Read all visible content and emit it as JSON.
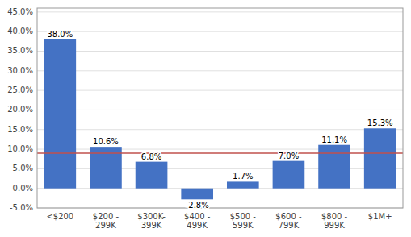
{
  "chart_data": {
    "type": "bar",
    "categories": [
      "<$200",
      "$200 -\n299K",
      "$300K-\n399K",
      "$400 -\n499K",
      "$500 -\n599K",
      "$600 -\n799K",
      "$800 -\n999K",
      "$1M+"
    ],
    "values": [
      38.0,
      10.6,
      6.8,
      -2.8,
      1.7,
      7.0,
      11.1,
      15.3
    ],
    "value_labels": [
      "38.0%",
      "10.6%",
      "6.8%",
      "-2.8%",
      "1.7%",
      "7.0%",
      "11.1%",
      "15.3%"
    ],
    "data_labels": true,
    "color": "#4472C4",
    "reference_line": 9.0,
    "reference_line_color": "#C0504D",
    "ylim": [
      -5.0,
      46.0
    ],
    "yticks": [
      {
        "value": -5.0,
        "label": "-5.0%"
      },
      {
        "value": 0.0,
        "label": "0.0%"
      },
      {
        "value": 5.0,
        "label": "5.0%"
      },
      {
        "value": 10.0,
        "label": "10.0%"
      },
      {
        "value": 15.0,
        "label": "15.0%"
      },
      {
        "value": 20.0,
        "label": "20.0%"
      },
      {
        "value": 25.0,
        "label": "25.0%"
      },
      {
        "value": 30.0,
        "label": "30.0%"
      },
      {
        "value": 35.0,
        "label": "35.0%"
      },
      {
        "value": 40.0,
        "label": "40.0%"
      },
      {
        "value": 45.0,
        "label": "45.0%"
      }
    ],
    "grid": true
  }
}
